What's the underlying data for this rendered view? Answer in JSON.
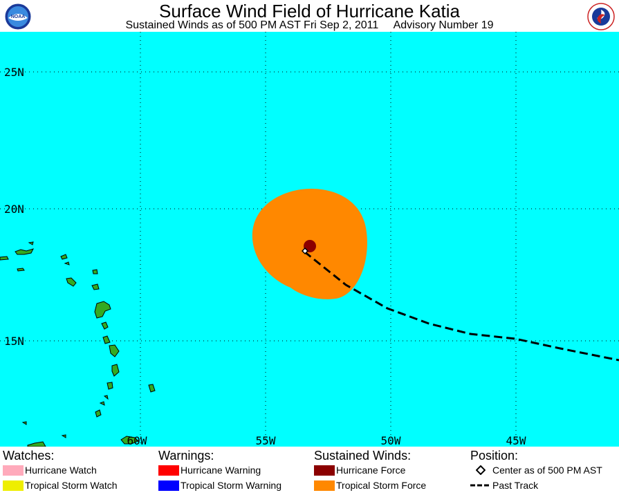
{
  "header": {
    "title": "Surface Wind Field of Hurricane Katia",
    "subtitle": "Sustained Winds as of 500 PM AST Fri Sep 2, 2011     Advisory Number 19",
    "left_logo": "NOAA",
    "right_logo": "NATIONAL WEATHER SERVICE"
  },
  "map": {
    "ocean_color": "#00ffff",
    "land_color": "#33aa22",
    "lat_labels": [
      "25N",
      "20N",
      "15N"
    ],
    "lon_labels": [
      "60W",
      "55W",
      "50W",
      "45W"
    ],
    "tropical_storm_force_color": "#ff8800",
    "hurricane_force_color": "#8b0000"
  },
  "legend": {
    "watches": {
      "heading": "Watches:",
      "items": [
        {
          "label": "Hurricane Watch",
          "color": "#ffaabb"
        },
        {
          "label": "Tropical Storm Watch",
          "color": "#eeee00"
        }
      ]
    },
    "warnings": {
      "heading": "Warnings:",
      "items": [
        {
          "label": "Hurricane Warning",
          "color": "#ff0000"
        },
        {
          "label": "Tropical Storm Warning",
          "color": "#0000ff"
        }
      ]
    },
    "winds": {
      "heading": "Sustained Winds:",
      "items": [
        {
          "label": "Hurricane Force",
          "color": "#8b0000"
        },
        {
          "label": "Tropical Storm Force",
          "color": "#ff8800"
        }
      ]
    },
    "position": {
      "heading": "Position:",
      "items": [
        {
          "label": "Center as of 500 PM AST",
          "icon": "diamond-icon"
        },
        {
          "label": "Past Track",
          "icon": "dashed-line-icon"
        }
      ]
    }
  }
}
